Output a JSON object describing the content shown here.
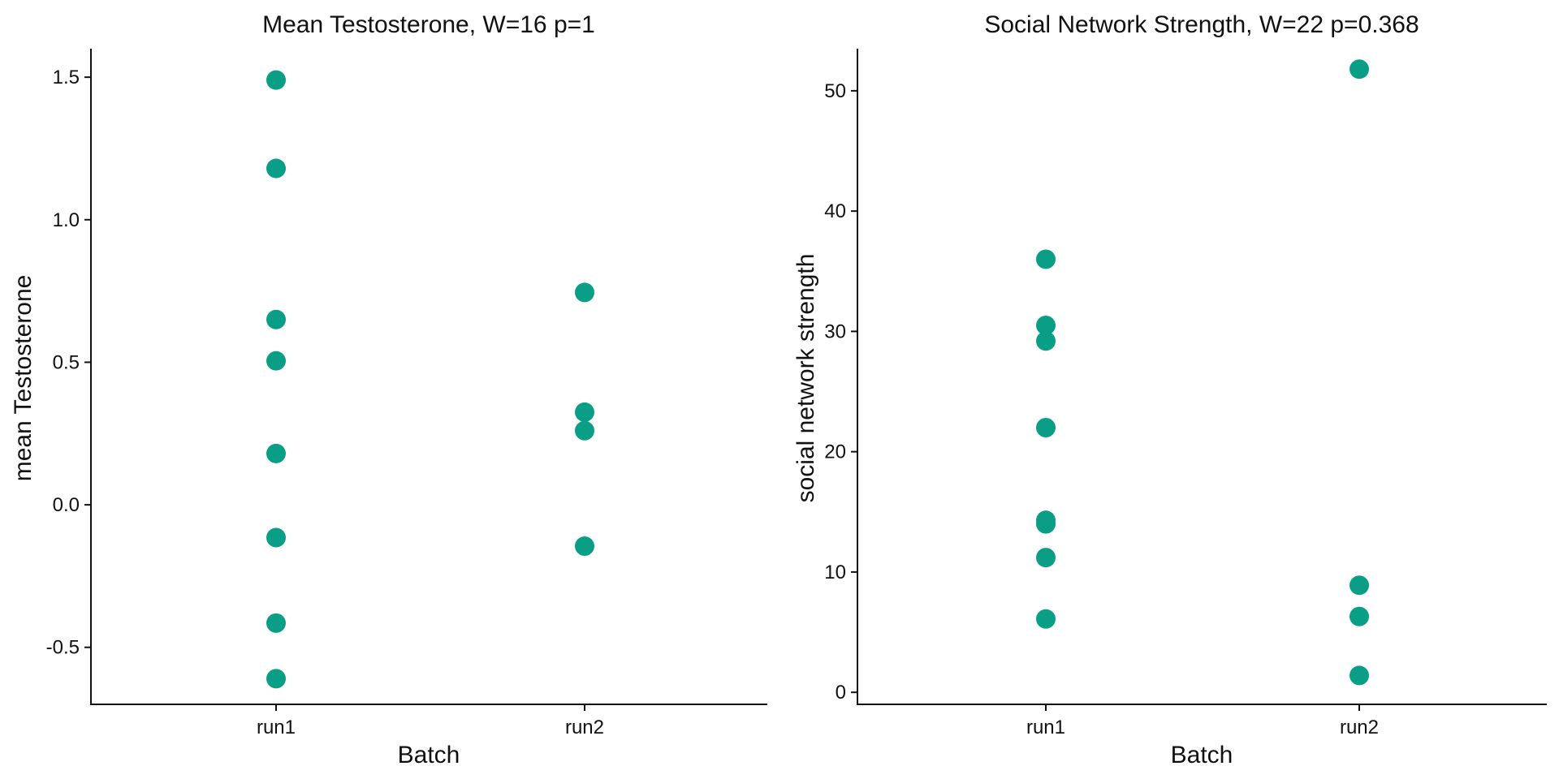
{
  "chart_data": [
    {
      "type": "scatter",
      "title": "Mean Testosterone, W=16 p=1",
      "xlabel": "Batch",
      "ylabel": "mean Testosterone",
      "categories": [
        "run1",
        "run2"
      ],
      "ylim": [
        -0.7,
        1.6
      ],
      "yticks": [
        -0.5,
        0.0,
        0.5,
        1.0,
        1.5
      ],
      "ytick_labels": [
        "-0.5",
        "0.0",
        "0.5",
        "1.0",
        "1.5"
      ],
      "point_color": "#0a9e86",
      "grid": false,
      "points": [
        {
          "x": "run1",
          "y": 1.49
        },
        {
          "x": "run1",
          "y": 1.18
        },
        {
          "x": "run1",
          "y": 0.65
        },
        {
          "x": "run1",
          "y": 0.505
        },
        {
          "x": "run1",
          "y": 0.18
        },
        {
          "x": "run1",
          "y": -0.115
        },
        {
          "x": "run1",
          "y": -0.415
        },
        {
          "x": "run1",
          "y": -0.61
        },
        {
          "x": "run2",
          "y": 0.745
        },
        {
          "x": "run2",
          "y": 0.325
        },
        {
          "x": "run2",
          "y": 0.26
        },
        {
          "x": "run2",
          "y": -0.145
        }
      ]
    },
    {
      "type": "scatter",
      "title": "Social Network Strength, W=22 p=0.368",
      "xlabel": "Batch",
      "ylabel": "social network strength",
      "categories": [
        "run1",
        "run2"
      ],
      "ylim": [
        -1,
        53.5
      ],
      "yticks": [
        0,
        10,
        20,
        30,
        40,
        50
      ],
      "ytick_labels": [
        "0",
        "10",
        "20",
        "30",
        "40",
        "50"
      ],
      "point_color": "#0a9e86",
      "grid": false,
      "points": [
        {
          "x": "run1",
          "y": 36.0
        },
        {
          "x": "run1",
          "y": 30.5
        },
        {
          "x": "run1",
          "y": 29.2
        },
        {
          "x": "run1",
          "y": 22.0
        },
        {
          "x": "run1",
          "y": 14.3
        },
        {
          "x": "run1",
          "y": 14.0
        },
        {
          "x": "run1",
          "y": 11.2
        },
        {
          "x": "run1",
          "y": 6.1
        },
        {
          "x": "run2",
          "y": 51.8
        },
        {
          "x": "run2",
          "y": 8.9
        },
        {
          "x": "run2",
          "y": 6.3
        },
        {
          "x": "run2",
          "y": 1.4
        }
      ]
    }
  ]
}
